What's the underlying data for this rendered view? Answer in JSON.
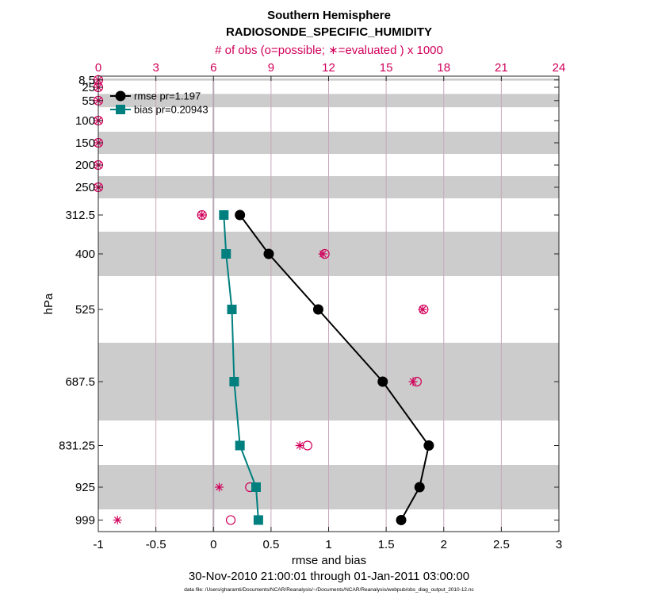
{
  "chart_data": {
    "type": "line",
    "title": "Southern Hemisphere",
    "subtitle": "RADIOSONDE_SPECIFIC_HUMIDITY",
    "top_axis_label": "# of obs (o=possible; ∗=evaluated ) x 1000",
    "xlabel": "rmse and bias",
    "ylabel": "hPa",
    "date_range": "30-Nov-2010 21:00:01 through 01-Jan-2011 03:00:00",
    "footnote": "data file: /Users/gharamti/Documents/NCAR/Reanalysis/~/Documents/NCAR/Reanalysis/webpub/obs_diag_output_2010-12.nc",
    "xlim": [
      -1,
      3
    ],
    "xticks": [
      -1,
      -0.5,
      0,
      0.5,
      1,
      1.5,
      2,
      2.5,
      3
    ],
    "xtick_labels": [
      "-1",
      "-0.5",
      "0",
      "0.5",
      "1",
      "1.5",
      "2",
      "2.5",
      "3"
    ],
    "top_xlim": [
      0,
      24
    ],
    "top_ticks": [
      0,
      3,
      6,
      9,
      12,
      15,
      18,
      21,
      24
    ],
    "top_tick_labels": [
      "0",
      "3",
      "6",
      "9",
      "12",
      "15",
      "18",
      "21",
      "24"
    ],
    "levels": [
      8.5,
      25,
      55,
      100,
      150,
      200,
      250,
      312.5,
      400,
      525,
      687.5,
      831.25,
      925,
      999
    ],
    "level_labels": [
      "8.5",
      "25",
      "55",
      "100",
      "150",
      "200",
      "250",
      "312.5",
      "400",
      "525",
      "687.5",
      "831.25",
      "925",
      "999"
    ],
    "shaded_bands": [
      [
        5,
        10
      ],
      [
        40,
        70
      ],
      [
        125,
        175
      ],
      [
        225,
        275
      ],
      [
        350,
        450
      ],
      [
        600,
        775
      ],
      [
        875,
        975
      ]
    ],
    "legend_position": "top-left",
    "series": [
      {
        "name": "rmse pr=1.197",
        "color": "#000000",
        "marker": "circle",
        "levels": [
          312.5,
          400,
          525,
          687.5,
          831.25,
          925,
          999
        ],
        "values": [
          0.23,
          0.48,
          0.91,
          1.47,
          1.87,
          1.79,
          1.63
        ]
      },
      {
        "name": "bias pr=0.20943",
        "color": "#007f7f",
        "marker": "square",
        "levels": [
          312.5,
          400,
          525,
          687.5,
          831.25,
          925,
          999
        ],
        "values": [
          0.09,
          0.11,
          0.16,
          0.18,
          0.23,
          0.37,
          0.39
        ]
      }
    ],
    "obs_possible": {
      "color": "#d1005a",
      "levels": [
        8.5,
        25,
        55,
        100,
        150,
        200,
        250,
        312.5,
        400,
        525,
        687.5,
        831.25,
        925,
        999
      ],
      "values": [
        0.0,
        0.0,
        0.0,
        0.0,
        0.0,
        0.0,
        0.0,
        5.4,
        11.8,
        16.95,
        16.6,
        10.9,
        7.9,
        6.9
      ]
    },
    "obs_evaluated": {
      "color": "#d1005a",
      "levels": [
        8.5,
        25,
        55,
        100,
        150,
        200,
        250,
        312.5,
        400,
        525,
        687.5,
        831.25,
        925,
        999
      ],
      "values": [
        0.0,
        0.0,
        0.0,
        0.0,
        0.0,
        0.0,
        0.0,
        5.4,
        11.7,
        16.9,
        16.4,
        10.5,
        6.3,
        1.0
      ]
    }
  }
}
